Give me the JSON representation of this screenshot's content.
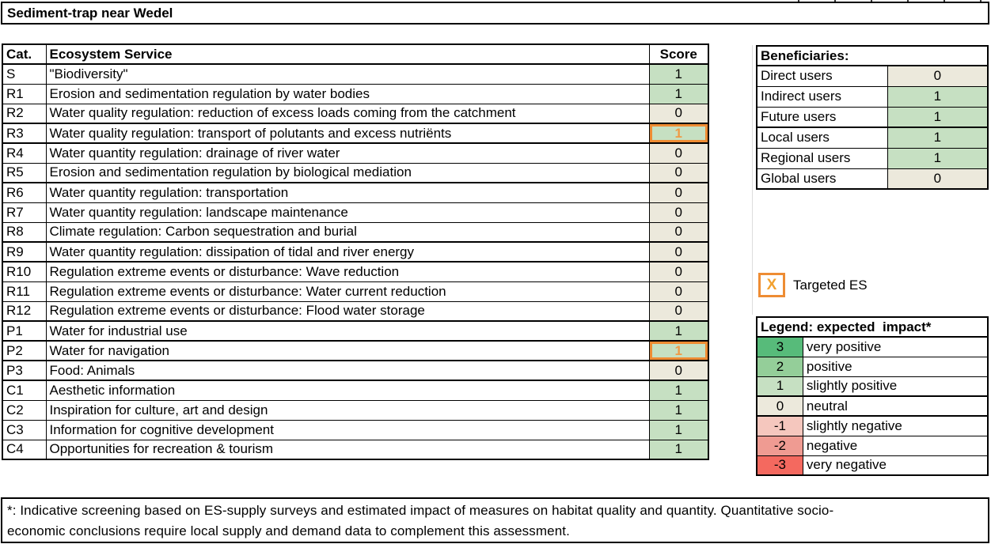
{
  "title": "Sediment-trap near Wedel",
  "colors": {
    "score_positive_green": "#c6e0c2",
    "score_neutral_beige": "#ece9dc",
    "highlight_orange": "#ee8c33",
    "highlight_x_orange": "#f2a12f",
    "targeted_score_text": "#f09a45"
  },
  "es_table": {
    "headers": {
      "cat": "Cat.",
      "service": "Ecosystem Service",
      "score": "Score"
    },
    "rows": [
      {
        "cat": "S",
        "service": "\"Biodiversity\"",
        "score": 1,
        "targeted": false,
        "thick_top": false
      },
      {
        "cat": "R1",
        "service": "Erosion and sedimentation regulation by water bodies",
        "score": 1,
        "targeted": false,
        "thick_top": false
      },
      {
        "cat": "R2",
        "service": "Water quality regulation: reduction of excess loads coming from the catchment",
        "score": 0,
        "targeted": false,
        "thick_top": false
      },
      {
        "cat": "R3",
        "service": "Water quality regulation: transport of polutants and excess nutriënts",
        "score": 1,
        "targeted": true,
        "thick_top": true
      },
      {
        "cat": "R4",
        "service": "Water quantity regulation: drainage of river water",
        "score": 0,
        "targeted": false,
        "thick_top": true
      },
      {
        "cat": "R5",
        "service": "Erosion and sedimentation regulation by biological mediation",
        "score": 0,
        "targeted": false,
        "thick_top": false
      },
      {
        "cat": "R6",
        "service": "Water quantity regulation: transportation",
        "score": 0,
        "targeted": false,
        "thick_top": true
      },
      {
        "cat": "R7",
        "service": "Water quantity regulation: landscape maintenance",
        "score": 0,
        "targeted": false,
        "thick_top": false
      },
      {
        "cat": "R8",
        "service": "Climate regulation: Carbon sequestration and burial",
        "score": 0,
        "targeted": false,
        "thick_top": false
      },
      {
        "cat": "R9",
        "service": "Water quantity regulation: dissipation of tidal and river energy",
        "score": 0,
        "targeted": false,
        "thick_top": true
      },
      {
        "cat": "R10",
        "service": "Regulation extreme events or disturbance: Wave reduction",
        "score": 0,
        "targeted": false,
        "thick_top": true
      },
      {
        "cat": "R11",
        "service": "Regulation extreme events or disturbance: Water current reduction",
        "score": 0,
        "targeted": false,
        "thick_top": false
      },
      {
        "cat": "R12",
        "service": "Regulation extreme events or disturbance: Flood water storage",
        "score": 0,
        "targeted": false,
        "thick_top": false
      },
      {
        "cat": "P1",
        "service": "Water for industrial use",
        "score": 1,
        "targeted": false,
        "thick_top": true
      },
      {
        "cat": "P2",
        "service": "Water for navigation",
        "score": 1,
        "targeted": true,
        "thick_top": true
      },
      {
        "cat": "P3",
        "service": "Food: Animals",
        "score": 0,
        "targeted": false,
        "thick_top": true
      },
      {
        "cat": "C1",
        "service": "Aesthetic information",
        "score": 1,
        "targeted": false,
        "thick_top": true
      },
      {
        "cat": "C2",
        "service": "Inspiration for culture, art and design",
        "score": 1,
        "targeted": false,
        "thick_top": false
      },
      {
        "cat": "C3",
        "service": "Information for cognitive development",
        "score": 1,
        "targeted": false,
        "thick_top": false
      },
      {
        "cat": "C4",
        "service": "Opportunities for recreation & tourism",
        "score": 1,
        "targeted": false,
        "thick_top": false
      }
    ]
  },
  "beneficiaries": {
    "title": "Beneficiaries:",
    "rows": [
      {
        "label": "Direct users",
        "value": 0,
        "thick_top": false
      },
      {
        "label": "Indirect users",
        "value": 1,
        "thick_top": false
      },
      {
        "label": "Future users",
        "value": 1,
        "thick_top": false
      },
      {
        "label": "Local users",
        "value": 1,
        "thick_top": true
      },
      {
        "label": "Regional users",
        "value": 1,
        "thick_top": false
      },
      {
        "label": "Global users",
        "value": 0,
        "thick_top": false
      }
    ]
  },
  "targeted_marker": {
    "symbol": "X",
    "label": "Targeted ES"
  },
  "legend": {
    "title": "Legend: expected  impact*",
    "rows": [
      {
        "value": "3",
        "label": "very positive",
        "color": "#57bb7a",
        "thick_top": false
      },
      {
        "value": "2",
        "label": "positive",
        "color": "#94ce99",
        "thick_top": false
      },
      {
        "value": "1",
        "label": "slightly positive",
        "color": "#c6e0c2",
        "thick_top": false
      },
      {
        "value": "0",
        "label": "neutral",
        "color": "#ece9dc",
        "thick_top": true
      },
      {
        "value": "-1",
        "label": "slightly negative",
        "color": "#f5c7be",
        "thick_top": true
      },
      {
        "value": "-2",
        "label": "negative",
        "color": "#ef9b92",
        "thick_top": false
      },
      {
        "value": "-3",
        "label": "very negative",
        "color": "#f4695f",
        "thick_top": false
      }
    ]
  },
  "footnote": {
    "line1": "*: Indicative screening based on ES-supply surveys and estimated impact of measures on habitat quality and quantity. Quantitative socio-",
    "line2": "economic conclusions require local supply and demand data to complement this assessment."
  }
}
